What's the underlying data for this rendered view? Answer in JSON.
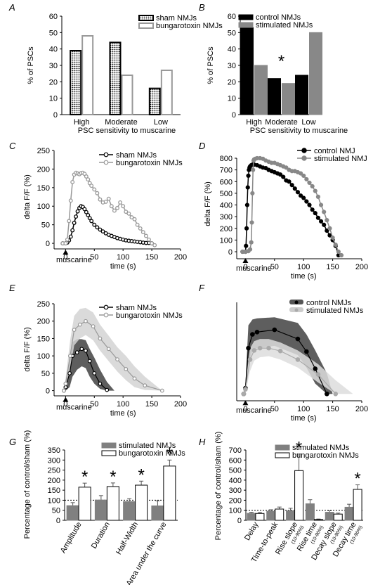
{
  "chart_data": [
    {
      "panel": "A",
      "type": "bar",
      "ylabel": "% of PSCs",
      "xlabel": "PSC sensitivity to muscarine",
      "ylim": [
        0,
        60
      ],
      "yticks": [
        0,
        10,
        20,
        30,
        40,
        50,
        60
      ],
      "categories": [
        "High",
        "Moderate",
        "Low"
      ],
      "series": [
        {
          "name": "sham NMJs",
          "values": [
            39,
            44,
            16
          ]
        },
        {
          "name": "bungarotoxin NMJs",
          "values": [
            48,
            24,
            27
          ]
        }
      ],
      "colors": {
        "sham": "#000000",
        "btx": "#999999"
      },
      "legend": "top-right"
    },
    {
      "panel": "B",
      "type": "bar",
      "ylabel": "% of PSCs",
      "xlabel": "PSC sensitivity to muscarine",
      "ylim": [
        0,
        60
      ],
      "yticks": [
        0,
        10,
        20,
        30,
        40,
        50,
        60
      ],
      "categories": [
        "High",
        "Moderate",
        "Low"
      ],
      "series": [
        {
          "name": "control NMJs",
          "values": [
            53,
            22,
            24
          ]
        },
        {
          "name": "stimulated NMJs",
          "values": [
            30,
            19,
            50
          ]
        }
      ],
      "annotation": "*",
      "colors": {
        "control": "#000000",
        "stimulated": "#888888"
      },
      "legend": "top-right"
    },
    {
      "panel": "C",
      "type": "line",
      "ylabel": "delta F/F (%)",
      "xlabel": "time (s)",
      "xlim": [
        -20,
        200
      ],
      "ylim": [
        -15,
        250
      ],
      "xticks": [
        0,
        50,
        100,
        150,
        200
      ],
      "yticks": [
        0,
        50,
        100,
        150,
        200,
        250
      ],
      "stimulus_label": "muscarine",
      "series": [
        {
          "name": "sham NMJs",
          "color": "#000000",
          "x": [
            -5,
            0,
            3,
            6,
            9,
            12,
            15,
            18,
            21,
            24,
            27,
            30,
            33,
            36,
            39,
            42,
            45,
            50,
            55,
            60,
            65,
            70,
            75,
            80,
            85,
            90,
            95,
            100,
            105,
            110,
            115,
            120,
            125,
            130,
            135,
            140,
            145,
            150
          ],
          "y": [
            0,
            0,
            2,
            8,
            18,
            35,
            55,
            72,
            86,
            95,
            100,
            98,
            92,
            84,
            76,
            68,
            60,
            50,
            43,
            37,
            32,
            27,
            23,
            20,
            17,
            14,
            12,
            10,
            8,
            7,
            6,
            5,
            4,
            3,
            2,
            1,
            1,
            0
          ]
        },
        {
          "name": "bungarotoxin NMJs",
          "color": "#999999",
          "x": [
            -5,
            0,
            3,
            6,
            9,
            12,
            15,
            18,
            21,
            24,
            27,
            30,
            33,
            36,
            39,
            42,
            45,
            50,
            55,
            60,
            65,
            70,
            75,
            80,
            85,
            90,
            95,
            100,
            105,
            110,
            115,
            120,
            125,
            130,
            135,
            140,
            145,
            150,
            155
          ],
          "y": [
            0,
            0,
            10,
            60,
            115,
            165,
            185,
            190,
            188,
            186,
            189,
            190,
            187,
            180,
            172,
            162,
            155,
            145,
            135,
            118,
            110,
            112,
            120,
            100,
            88,
            95,
            110,
            100,
            85,
            80,
            70,
            65,
            50,
            40,
            30,
            20,
            10,
            0,
            -5
          ]
        }
      ],
      "legend": "top-right"
    },
    {
      "panel": "D",
      "type": "line",
      "ylabel": "delta F/F (%)",
      "xlabel": "time (s)",
      "xlim": [
        -15,
        200
      ],
      "ylim": [
        -60,
        800
      ],
      "xticks": [
        0,
        50,
        100,
        150,
        200
      ],
      "yticks": [
        0,
        100,
        200,
        300,
        400,
        500,
        600,
        700,
        800
      ],
      "stimulus_label": "muscarine",
      "series": [
        {
          "name": "control NMJ",
          "color": "#000000",
          "x": [
            -5,
            0,
            1,
            2,
            3,
            4,
            5,
            6,
            7,
            8,
            10,
            12,
            15,
            20,
            25,
            30,
            35,
            40,
            45,
            50,
            55,
            60,
            65,
            70,
            75,
            80,
            85,
            90,
            95,
            100,
            105,
            110,
            115,
            120,
            125,
            130,
            135,
            140,
            145,
            150,
            155,
            160
          ],
          "y": [
            0,
            0,
            50,
            200,
            400,
            550,
            650,
            700,
            720,
            730,
            740,
            745,
            745,
            740,
            730,
            720,
            715,
            700,
            690,
            680,
            670,
            660,
            640,
            610,
            600,
            570,
            540,
            510,
            480,
            460,
            430,
            400,
            360,
            330,
            290,
            260,
            230,
            180,
            140,
            100,
            50,
            -30
          ]
        },
        {
          "name": "stimulated NMJ",
          "color": "#888888",
          "x": [
            -5,
            0,
            5,
            8,
            10,
            11,
            12,
            13,
            14,
            15,
            17,
            20,
            25,
            30,
            35,
            40,
            45,
            50,
            55,
            60,
            65,
            70,
            75,
            80,
            85,
            90,
            95,
            100,
            105,
            110,
            115,
            120,
            125,
            130,
            135,
            140,
            145,
            150,
            155,
            160,
            165
          ],
          "y": [
            0,
            0,
            5,
            20,
            80,
            250,
            500,
            700,
            780,
            790,
            795,
            800,
            800,
            795,
            780,
            770,
            760,
            760,
            750,
            740,
            730,
            720,
            700,
            690,
            690,
            680,
            670,
            650,
            620,
            590,
            560,
            520,
            470,
            400,
            340,
            270,
            200,
            120,
            60,
            0,
            -30
          ]
        }
      ],
      "legend": "top-right"
    },
    {
      "panel": "E",
      "type": "line",
      "ylabel": "delta F/F (%)",
      "xlabel": "time (s)",
      "xlim": [
        -20,
        200
      ],
      "ylim": [
        -15,
        250
      ],
      "xticks": [
        0,
        50,
        100,
        150,
        200
      ],
      "yticks": [
        0,
        50,
        100,
        150,
        200,
        250
      ],
      "stimulus_label": "muscarine",
      "series": [
        {
          "name": "sham NMJs",
          "color": "#000000",
          "x": [
            -3,
            0,
            7,
            12,
            20,
            28,
            35,
            42,
            50,
            60,
            72
          ],
          "y": [
            0,
            10,
            50,
            100,
            110,
            120,
            115,
            85,
            50,
            20,
            2
          ],
          "lower": [
            -2,
            2,
            20,
            50,
            70,
            80,
            75,
            50,
            25,
            5,
            0
          ],
          "upper": [
            2,
            18,
            85,
            140,
            148,
            148,
            145,
            120,
            90,
            45,
            10
          ],
          "band_x": [
            -3,
            0,
            7,
            12,
            20,
            28,
            35,
            42,
            50,
            60,
            72,
            85
          ],
          "band_lower": [
            -2,
            0,
            10,
            40,
            60,
            70,
            65,
            40,
            20,
            5,
            0,
            0
          ],
          "band_upper": [
            2,
            20,
            100,
            140,
            148,
            148,
            145,
            120,
            95,
            60,
            25,
            0
          ],
          "band_color": "#555555"
        },
        {
          "name": "bungarotoxin NMJs",
          "color": "#999999",
          "x": [
            -3,
            0,
            8,
            15,
            25,
            35,
            48,
            60,
            75,
            90,
            105,
            120,
            138,
            168
          ],
          "y": [
            0,
            20,
            100,
            175,
            190,
            200,
            185,
            150,
            120,
            90,
            62,
            35,
            15,
            0
          ],
          "band_x": [
            -3,
            0,
            8,
            15,
            25,
            35,
            48,
            60,
            75,
            90,
            105,
            120,
            138,
            168
          ],
          "band_lower": [
            -2,
            5,
            60,
            130,
            150,
            160,
            145,
            115,
            85,
            55,
            30,
            10,
            2,
            0
          ],
          "band_upper": [
            2,
            35,
            145,
            215,
            235,
            238,
            225,
            190,
            158,
            125,
            100,
            70,
            40,
            0
          ],
          "band_color": "#d4d4d4"
        }
      ],
      "legend": "top-right"
    },
    {
      "panel": "F",
      "type": "line",
      "xlabel": "time (s)",
      "xlim": [
        -15,
        200
      ],
      "ylim": [
        -60,
        800
      ],
      "xticks": [
        0,
        50,
        100,
        150,
        200
      ],
      "stimulus_label": "muscarine",
      "series": [
        {
          "name": "control NMJs",
          "color": "#000000",
          "x": [
            -3,
            0,
            5,
            12,
            20,
            50,
            90,
            105,
            120,
            140
          ],
          "y": [
            0,
            50,
            400,
            520,
            540,
            560,
            480,
            370,
            220,
            0
          ],
          "band_x": [
            -3,
            0,
            5,
            12,
            20,
            50,
            90,
            105,
            120,
            140,
            150
          ],
          "band_lower": [
            -2,
            10,
            250,
            380,
            400,
            420,
            340,
            230,
            90,
            0,
            0
          ],
          "band_upper": [
            2,
            90,
            600,
            650,
            660,
            670,
            620,
            520,
            380,
            180,
            0
          ],
          "band_color": "#555555"
        },
        {
          "name": "stimulated NMJs",
          "color": "#aaaaaa",
          "x": [
            -3,
            0,
            8,
            15,
            25,
            40,
            60,
            90,
            125,
            155
          ],
          "y": [
            0,
            40,
            300,
            380,
            400,
            400,
            375,
            300,
            170,
            0
          ],
          "band_x": [
            -3,
            0,
            8,
            15,
            25,
            40,
            60,
            90,
            125,
            155,
            185
          ],
          "band_lower": [
            -2,
            10,
            200,
            290,
            320,
            330,
            300,
            230,
            100,
            0,
            0
          ],
          "band_upper": [
            2,
            80,
            400,
            460,
            480,
            480,
            450,
            380,
            260,
            120,
            0
          ],
          "band_color": "#dddddd"
        }
      ],
      "legend": "top-right"
    },
    {
      "panel": "G",
      "type": "bar",
      "ylabel": "Percentage of control/sham (%)",
      "ylim": [
        0,
        350
      ],
      "yticks": [
        0,
        50,
        100,
        150,
        200,
        250,
        300,
        350
      ],
      "reference_line": 100,
      "categories": [
        "Amplitude",
        "Duration",
        "Half-Width",
        "Area under the curve"
      ],
      "series": [
        {
          "name": "stimulated NMJs",
          "values": [
            73,
            101,
            93,
            72
          ],
          "errors": [
            15,
            22,
            15,
            25
          ]
        },
        {
          "name": "bungarotoxin NMJs",
          "values": [
            165,
            168,
            175,
            270
          ],
          "errors": [
            20,
            18,
            20,
            30
          ]
        }
      ],
      "significant": [
        false,
        true,
        false,
        true,
        false,
        true,
        false,
        true
      ],
      "annotation": "*",
      "legend": "top-right"
    },
    {
      "panel": "H",
      "type": "bar",
      "ylabel": "Percentage of control/sham (%)",
      "ylim": [
        0,
        700
      ],
      "yticks": [
        0,
        100,
        200,
        300,
        400,
        500,
        600,
        700
      ],
      "reference_line": 100,
      "categories": [
        "Delay",
        "Time-to-peak",
        "Rise slope",
        "Rise time",
        "Decay slope",
        "Decay time"
      ],
      "category_subs": [
        "",
        "",
        "(10-90%)",
        "(10-90%)",
        "(10-90%)",
        "(10-90%)"
      ],
      "series": [
        {
          "name": "stimulated NMJs",
          "values": [
            70,
            90,
            95,
            165,
            80,
            130
          ],
          "errors": [
            10,
            15,
            25,
            40,
            15,
            30
          ]
        },
        {
          "name": "bungarotoxin NMJs",
          "values": [
            68,
            112,
            495,
            8,
            62,
            308
          ],
          "errors": [
            10,
            20,
            165,
            5,
            10,
            45
          ]
        }
      ],
      "significant": [
        false,
        false,
        false,
        false,
        false,
        true,
        false,
        false,
        false,
        false,
        false,
        true
      ],
      "annotation": "*",
      "legend": "top-right"
    }
  ]
}
